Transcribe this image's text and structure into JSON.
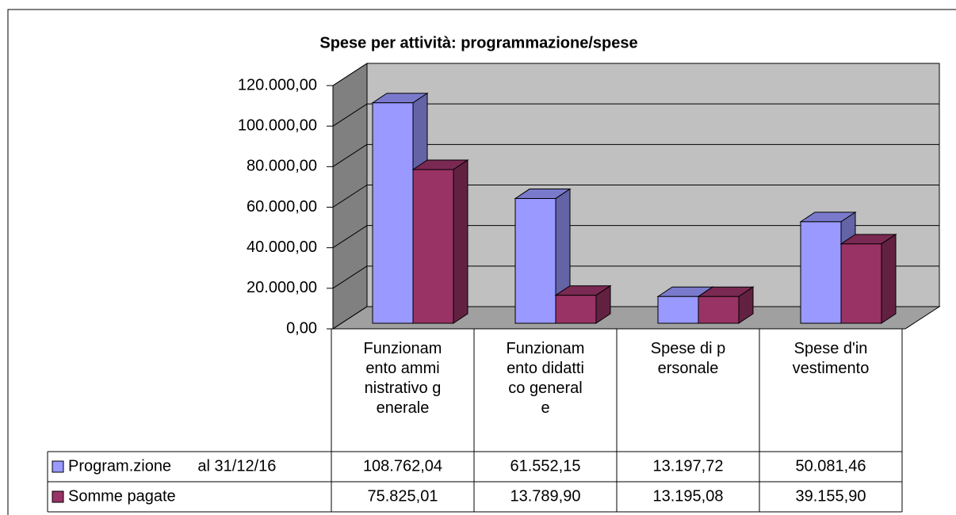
{
  "chart_data": {
    "type": "bar3d",
    "title": "Spese per attività: programmazione/spese",
    "categories": [
      "Funzionamento amministrativo generale",
      "Funzionamento didattico generale",
      "Spese di personale",
      "Spese d'investimento"
    ],
    "series": [
      {
        "name": "Program.zione      al 31/12/16",
        "color": "#9999ff",
        "values": [
          108762.04,
          61552.15,
          13197.72,
          50081.46
        ],
        "value_labels": [
          "108.762,04",
          "61.552,15",
          "13.197,72",
          "50.081,46"
        ]
      },
      {
        "name": "Somme pagate",
        "color": "#993366",
        "values": [
          75825.01,
          13789.9,
          13195.08,
          39155.9
        ],
        "value_labels": [
          "75.825,01",
          "13.789,90",
          "13.195,08",
          "39.155,90"
        ]
      }
    ],
    "ylim": [
      0,
      120000
    ],
    "yticks": [
      {
        "value": 0,
        "label": "0,00"
      },
      {
        "value": 20000,
        "label": "20.000,00"
      },
      {
        "value": 40000,
        "label": "40.000,00"
      },
      {
        "value": 60000,
        "label": "60.000,00"
      },
      {
        "value": 80000,
        "label": "80.000,00"
      },
      {
        "value": 100000,
        "label": "100.000,00"
      },
      {
        "value": 120000,
        "label": "120.000,00"
      }
    ],
    "grid": true,
    "legend": "table"
  }
}
